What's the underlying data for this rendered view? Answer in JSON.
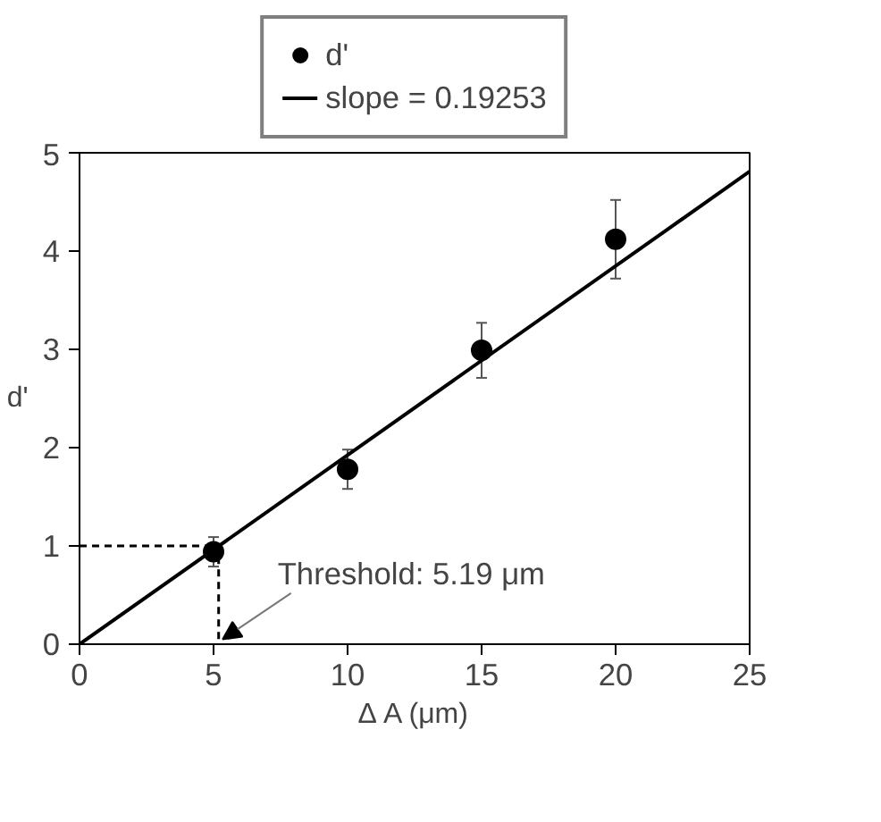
{
  "chart_data": {
    "type": "scatter",
    "xlabel": "Δ A (μm)",
    "ylabel": "d'",
    "xlim": [
      0,
      25
    ],
    "ylim": [
      0,
      5
    ],
    "xticks": [
      0,
      5,
      10,
      15,
      20,
      25
    ],
    "yticks": [
      0,
      1,
      2,
      3,
      4,
      5
    ],
    "grid": false,
    "legend": "top",
    "series": [
      {
        "name": "d'",
        "marker": "circle",
        "color": "#000000",
        "x": [
          5,
          10,
          15,
          20
        ],
        "values": [
          0.94,
          1.78,
          2.99,
          4.12
        ],
        "errors": [
          0.15,
          0.2,
          0.28,
          0.4
        ]
      },
      {
        "name": "slope = 0.19253",
        "type": "line",
        "color": "#000000",
        "line_style": "solid",
        "x": [
          0,
          25
        ],
        "values": [
          0,
          4.81
        ]
      },
      {
        "type": "line",
        "color": "#000000",
        "line_style": "dashed",
        "x": [
          0,
          5.19,
          5.19
        ],
        "values": [
          1,
          1,
          0
        ]
      }
    ],
    "annotations": [
      {
        "text": "Threshold: 5.19 μm",
        "x": 5.19,
        "y": 0
      }
    ]
  }
}
